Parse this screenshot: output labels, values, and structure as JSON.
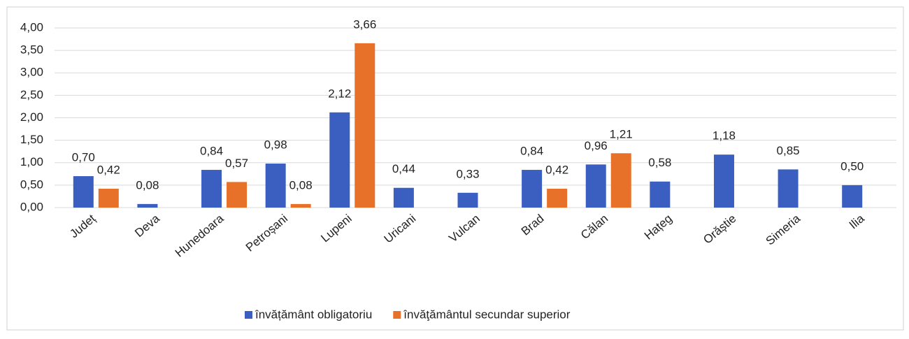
{
  "chart_data": {
    "type": "bar",
    "categories": [
      "Județ",
      "Deva",
      "Hunedoara",
      "Petroșani",
      "Lupeni",
      "Uricani",
      "Vulcan",
      "Brad",
      "Călan",
      "Hațeg",
      "Orăștie",
      "Simeria",
      "Ilia"
    ],
    "series": [
      {
        "name": "învățământ obligatoriu",
        "color": "#3a5fc0",
        "values": [
          0.7,
          0.08,
          0.84,
          0.98,
          2.12,
          0.44,
          0.33,
          0.84,
          0.96,
          0.58,
          1.18,
          0.85,
          0.5
        ],
        "value_labels": [
          "0,70",
          "0,08",
          "0,84",
          "0,98",
          "2,12",
          "0,44",
          "0,33",
          "0,84",
          "0,96",
          "0,58",
          "1,18",
          "0,85",
          "0,50"
        ]
      },
      {
        "name": "învăţământul secundar superior",
        "color": "#e8712a",
        "values": [
          0.42,
          null,
          0.57,
          0.08,
          3.66,
          null,
          null,
          0.42,
          1.21,
          null,
          null,
          null,
          null
        ],
        "value_labels": [
          "0,42",
          null,
          "0,57",
          "0,08",
          "3,66",
          null,
          null,
          "0,42",
          "1,21",
          null,
          null,
          null,
          null
        ]
      }
    ],
    "ylim": [
      0,
      4
    ],
    "yticks": [
      {
        "value": 0,
        "label": "0,00"
      },
      {
        "value": 0.5,
        "label": "0,50"
      },
      {
        "value": 1,
        "label": "1,00"
      },
      {
        "value": 1.5,
        "label": "1,50"
      },
      {
        "value": 2,
        "label": "2,00"
      },
      {
        "value": 2.5,
        "label": "2,50"
      },
      {
        "value": 3,
        "label": "3,00"
      },
      {
        "value": 3.5,
        "label": "3,50"
      },
      {
        "value": 4,
        "label": "4,00"
      }
    ],
    "grid": true,
    "legend": "bottom"
  }
}
